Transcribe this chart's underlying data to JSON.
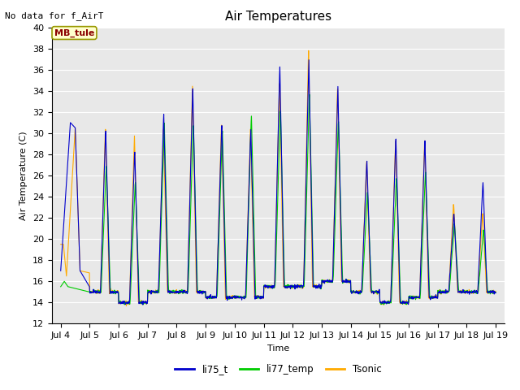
{
  "title": "Air Temperatures",
  "xlabel": "Time",
  "ylabel": "Air Temperature (C)",
  "note": "No data for f_AirT",
  "site_label": "MB_tule",
  "ylim": [
    12,
    40
  ],
  "yticks": [
    12,
    14,
    16,
    18,
    20,
    22,
    24,
    26,
    28,
    30,
    32,
    34,
    36,
    38,
    40
  ],
  "xtick_labels": [
    "Jul 4",
    "Jul 5",
    "Jul 6",
    "Jul 7",
    "Jul 8",
    "Jul 9",
    "Jul 10",
    "Jul 11",
    "Jul 12",
    "Jul 13",
    "Jul 14",
    "Jul 15",
    "Jul 16",
    "Jul 17",
    "Jul 18",
    "Jul 19"
  ],
  "legend_entries": [
    "li75_t",
    "li77_temp",
    "Tsonic"
  ],
  "line_colors": [
    "#0000cc",
    "#00cc00",
    "#ffaa00"
  ],
  "line_width": 0.8,
  "title_fontsize": 11,
  "label_fontsize": 8,
  "tick_fontsize": 8
}
